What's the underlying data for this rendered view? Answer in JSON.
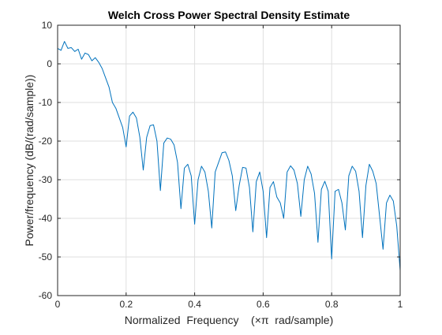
{
  "chart_data": {
    "type": "line",
    "title": "Welch Cross Power Spectral Density Estimate",
    "xlabel": "Normalized  Frequency    (×π  rad/sample)",
    "ylabel": "Power/frequency (dB/(rad/sample))",
    "xlim": [
      0,
      1
    ],
    "ylim": [
      -60,
      10
    ],
    "xticks": [
      0,
      0.2,
      0.4,
      0.6,
      0.8,
      1
    ],
    "xtick_labels": [
      "0",
      "0.2",
      "0.4",
      "0.6",
      "0.8",
      "1"
    ],
    "yticks": [
      10,
      0,
      -10,
      -20,
      -30,
      -40,
      -50,
      -60
    ],
    "ytick_labels": [
      "10",
      "0",
      "-10",
      "-20",
      "-30",
      "-40",
      "-50",
      "-60"
    ],
    "grid": true,
    "line_color": "#0072bd",
    "grid_color": "#dfdfdf",
    "series": [
      {
        "x": [
          0,
          0.01,
          0.02,
          0.03,
          0.04,
          0.05,
          0.06,
          0.07,
          0.08,
          0.09,
          0.1,
          0.11,
          0.12,
          0.13,
          0.14,
          0.15,
          0.16,
          0.17,
          0.18,
          0.19,
          0.2,
          0.21,
          0.22,
          0.23,
          0.24,
          0.25,
          0.26,
          0.27,
          0.28,
          0.29,
          0.3,
          0.31,
          0.32,
          0.33,
          0.34,
          0.35,
          0.36,
          0.37,
          0.38,
          0.39,
          0.4,
          0.41,
          0.42,
          0.43,
          0.44,
          0.45,
          0.46,
          0.47,
          0.48,
          0.49,
          0.5,
          0.51,
          0.52,
          0.53,
          0.54,
          0.55,
          0.56,
          0.57,
          0.58,
          0.59,
          0.6,
          0.61,
          0.62,
          0.63,
          0.64,
          0.65,
          0.66,
          0.67,
          0.68,
          0.69,
          0.7,
          0.71,
          0.72,
          0.73,
          0.74,
          0.75,
          0.76,
          0.77,
          0.78,
          0.79,
          0.8,
          0.81,
          0.82,
          0.83,
          0.84,
          0.85,
          0.86,
          0.87,
          0.88,
          0.89,
          0.9,
          0.91,
          0.92,
          0.93,
          0.94,
          0.95,
          0.96,
          0.97,
          0.98,
          0.99,
          1
        ],
        "y": [
          4,
          3.5,
          5.8,
          4,
          4.2,
          3.2,
          3.8,
          1.2,
          2.8,
          2.4,
          0.8,
          1.6,
          0.4,
          -1.2,
          -3.6,
          -6,
          -10,
          -11.5,
          -14,
          -16.5,
          -21.5,
          -13.5,
          -12.5,
          -14,
          -19,
          -27.5,
          -19,
          -16,
          -15.8,
          -20,
          -32.8,
          -20.5,
          -19.2,
          -19.5,
          -21,
          -25.5,
          -37.5,
          -27,
          -26,
          -29,
          -41.5,
          -30,
          -26.5,
          -28,
          -33,
          -42.5,
          -28,
          -25.5,
          -23,
          -22.8,
          -25,
          -29,
          -38,
          -31.5,
          -26.8,
          -27,
          -32,
          -43.5,
          -30.5,
          -28,
          -33,
          -45,
          -32,
          -30.5,
          -34.5,
          -36,
          -40,
          -28,
          -26.4,
          -27.5,
          -31,
          -39.5,
          -30,
          -26.5,
          -28.5,
          -33.5,
          -46.2,
          -32.5,
          -30.4,
          -33,
          -50.5,
          -33,
          -32.5,
          -36,
          -43,
          -29,
          -26.5,
          -27.8,
          -33,
          -45,
          -31.5,
          -26,
          -27.8,
          -31,
          -39.5,
          -48,
          -36,
          -34,
          -35.5,
          -42,
          -53.5
        ]
      }
    ]
  }
}
